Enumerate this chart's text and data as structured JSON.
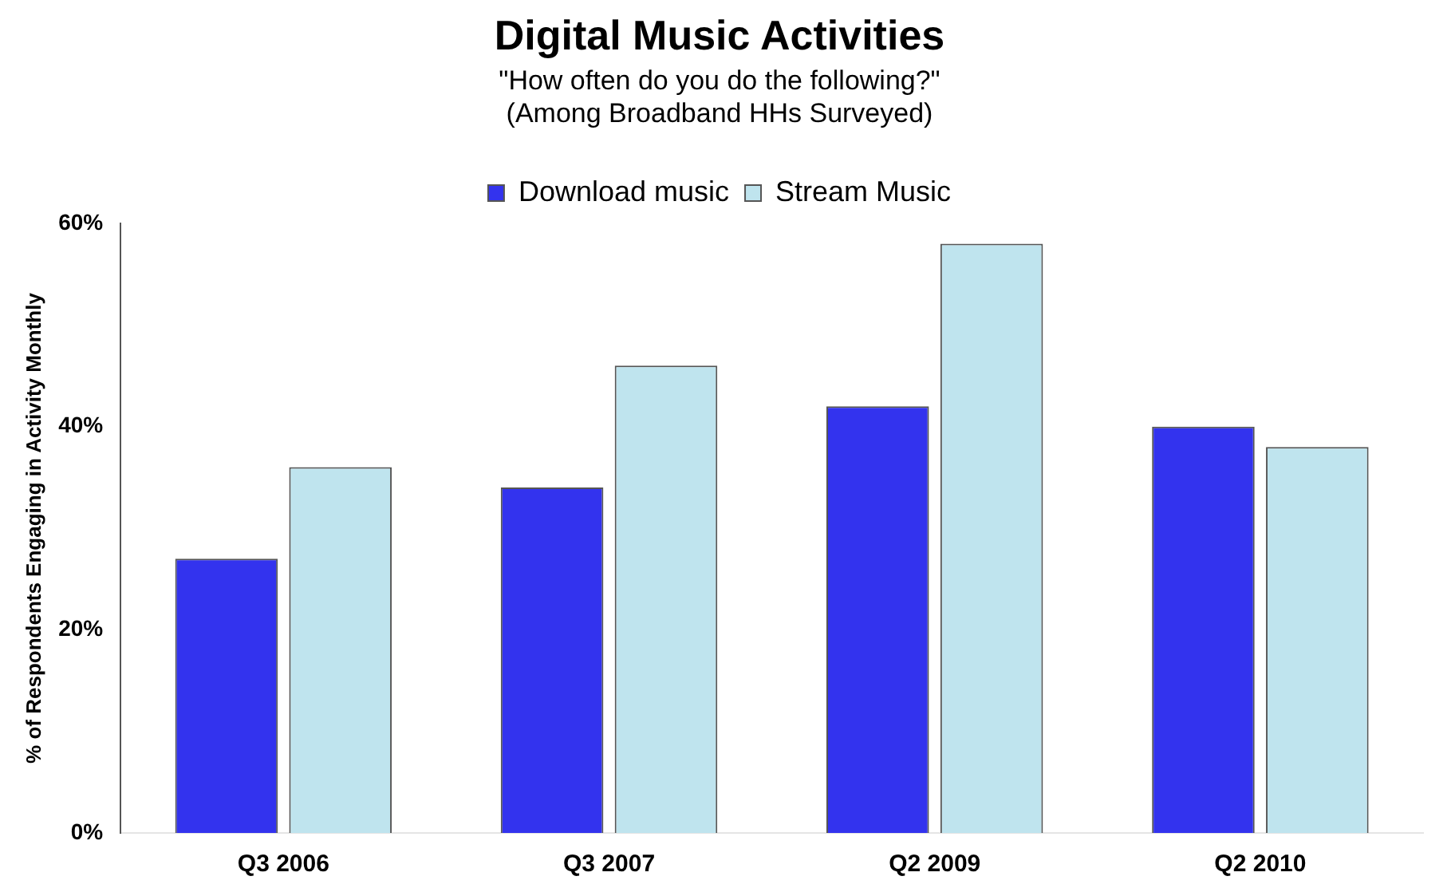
{
  "chart_data": {
    "type": "bar",
    "title": "Digital Music Activities",
    "subtitle": "\"How often do you do the following?\"\n(Among Broadband HHs Surveyed)",
    "ylabel": "% of Respondents Engaging in Activity Monthly",
    "categories": [
      "Q3 2006",
      "Q3 2007",
      "Q2 2009",
      "Q2 2010"
    ],
    "series": [
      {
        "name": "Download music",
        "color": "#3333ee",
        "values": [
          27,
          34,
          42,
          40
        ]
      },
      {
        "name": "Stream Music",
        "color": "#bfe4ee",
        "values": [
          36,
          46,
          58,
          38
        ]
      }
    ],
    "ylim": [
      0,
      60
    ],
    "yticks": [
      {
        "value": 0,
        "label": "0%"
      },
      {
        "value": 20,
        "label": "20%"
      },
      {
        "value": 40,
        "label": "40%"
      },
      {
        "value": 60,
        "label": "60%"
      }
    ],
    "grid": false,
    "legend": "top"
  }
}
